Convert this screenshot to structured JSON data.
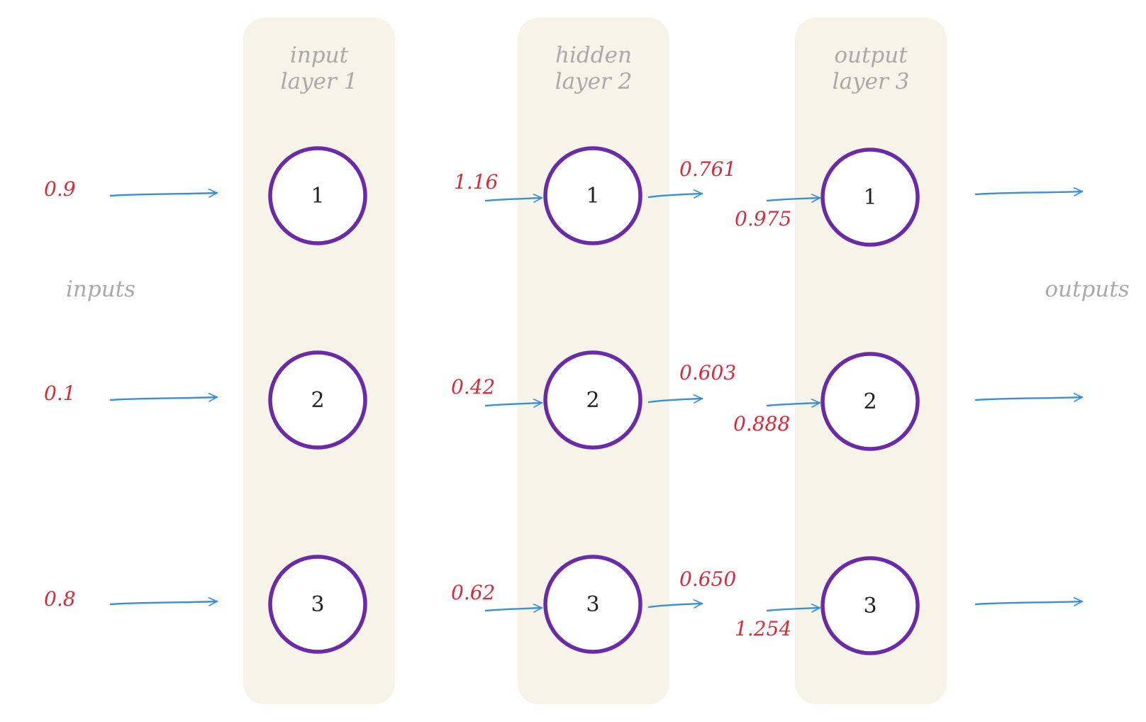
{
  "layers": [
    {
      "title_line1": "input",
      "title_line2": "layer 1",
      "nodes": [
        "1",
        "2",
        "3"
      ]
    },
    {
      "title_line1": "hidden",
      "title_line2": "layer 2",
      "nodes": [
        "1",
        "2",
        "3"
      ]
    },
    {
      "title_line1": "output",
      "title_line2": "layer 3",
      "nodes": [
        "1",
        "2",
        "3"
      ]
    }
  ],
  "side_labels": {
    "inputs": "inputs",
    "outputs": "outputs"
  },
  "input_values": [
    "0.9",
    "0.1",
    "0.8"
  ],
  "hidden_inputs": [
    "1.16",
    "0.42",
    "0.62"
  ],
  "hidden_outputs": [
    "0.761",
    "0.603",
    "0.650"
  ],
  "output_inputs": [
    "0.975",
    "0.888",
    "1.254"
  ],
  "colors": {
    "band": "#f6f3e8",
    "node_stroke": "#6b2aa6",
    "arrow": "#3b8fd4",
    "value_text": "#d62b3a",
    "label_text": "#a9a9a9"
  }
}
